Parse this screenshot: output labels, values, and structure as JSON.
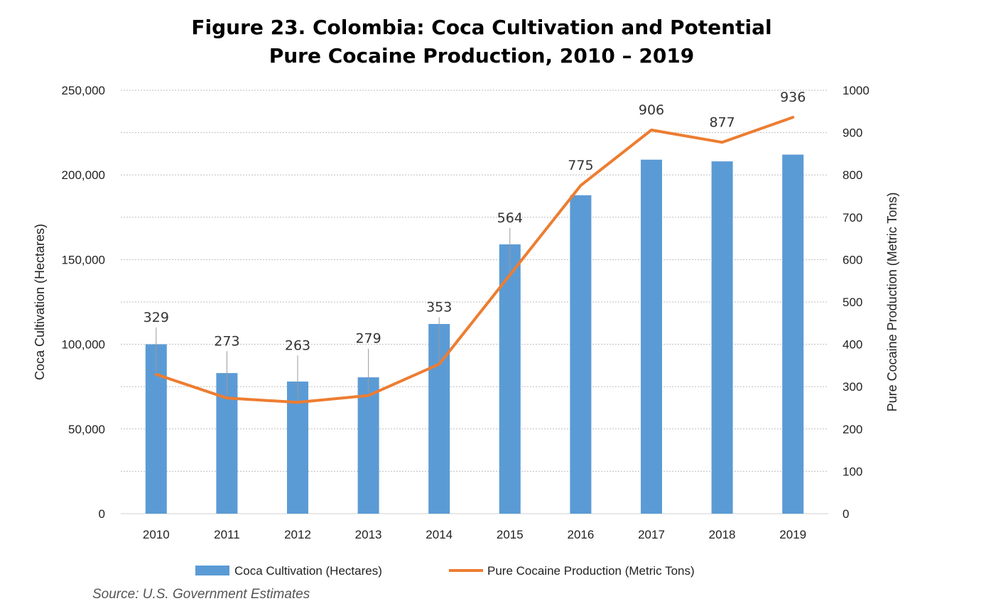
{
  "chart_data": {
    "type": "bar",
    "title_lines": [
      "Figure 23. Colombia: Coca Cultivation and Potential",
      "Pure Cocaine Production, 2010 – 2019"
    ],
    "categories": [
      "2010",
      "2011",
      "2012",
      "2013",
      "2014",
      "2015",
      "2016",
      "2017",
      "2018",
      "2019"
    ],
    "series": [
      {
        "name": "Coca Cultivation (Hectares)",
        "type": "bar",
        "axis": "left",
        "color": "#5B9BD5",
        "values": [
          100000,
          83000,
          78000,
          80500,
          112000,
          159000,
          188000,
          209000,
          208000,
          212000
        ]
      },
      {
        "name": "Pure Cocaine Production (Metric Tons)",
        "type": "line",
        "axis": "right",
        "color": "#ED7D31",
        "values": [
          329,
          273,
          263,
          279,
          353,
          564,
          775,
          906,
          877,
          936
        ],
        "labels": [
          "329",
          "273",
          "263",
          "279",
          "353",
          "564",
          "775",
          "906",
          "877",
          "936"
        ]
      }
    ],
    "y_left": {
      "label": "Coca Cultivation (Hectares)",
      "range": [
        0,
        250000
      ],
      "ticks": [
        0,
        50000,
        100000,
        150000,
        200000,
        250000
      ],
      "tick_labels": [
        "0",
        "50,000",
        "100,000",
        "150,000",
        "200,000",
        "250,000"
      ]
    },
    "y_right": {
      "label": "Pure Cocaine Production (Metric Tons)",
      "range": [
        0,
        1000
      ],
      "ticks": [
        0,
        100,
        200,
        300,
        400,
        500,
        600,
        700,
        800,
        900,
        1000
      ],
      "tick_labels": [
        "0",
        "100",
        "200",
        "300",
        "400",
        "500",
        "600",
        "700",
        "800",
        "900",
        "1000"
      ]
    },
    "grid": true,
    "legend_position": "bottom",
    "source": "Source: U.S. Government Estimates"
  }
}
